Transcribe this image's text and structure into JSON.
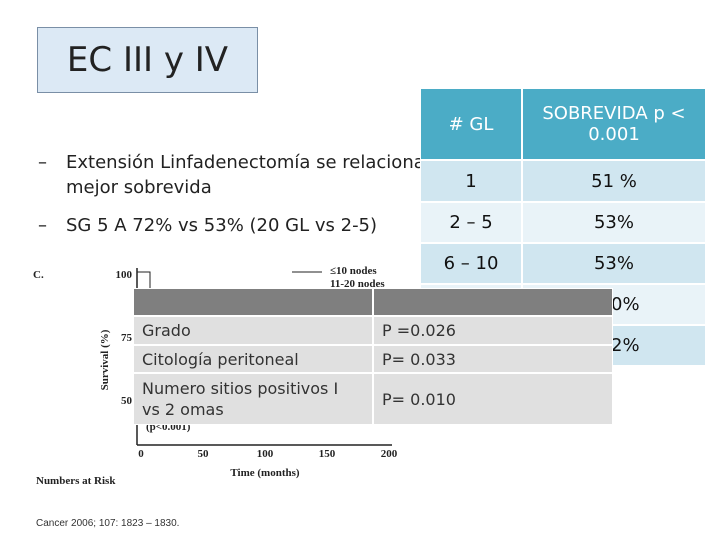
{
  "title": "EC III y IV",
  "bullets": [
    "Extensión Linfadenectomía se relaciona a mejor sobrevida",
    "SG 5 A   72%  vs 53%   (20 GL vs 2-5)"
  ],
  "table": {
    "header": [
      "# GL",
      "SOBREVIDA p < 0.001"
    ],
    "rows": [
      [
        "1",
        "51 %"
      ],
      [
        "2 – 5",
        "53%"
      ],
      [
        "6 – 10",
        "53%"
      ],
      [
        "",
        "0%"
      ],
      [
        "",
        "2%"
      ]
    ]
  },
  "figure": {
    "panel": "C.",
    "y_label": "Survival (%)",
    "y_ticks": [
      "100",
      "75",
      "50"
    ],
    "x_ticks": [
      "0",
      "50",
      "100",
      "150",
      "200"
    ],
    "x_label": "Time (months)",
    "legend": [
      "≤10 nodes",
      "11-20 nodes"
    ],
    "p_note": "(p<0.001)",
    "risk_label": "Numbers at Risk"
  },
  "overlay": {
    "header": [
      "",
      ""
    ],
    "rows": [
      [
        "Grado",
        "P =0.026"
      ],
      [
        "Citología peritoneal",
        "P= 0.033"
      ],
      [
        "Numero sitios positivos  I  vs 2 omas",
        "P= 0.010"
      ]
    ]
  },
  "citation": "Cancer 2006; 107: 1823 – 1830."
}
